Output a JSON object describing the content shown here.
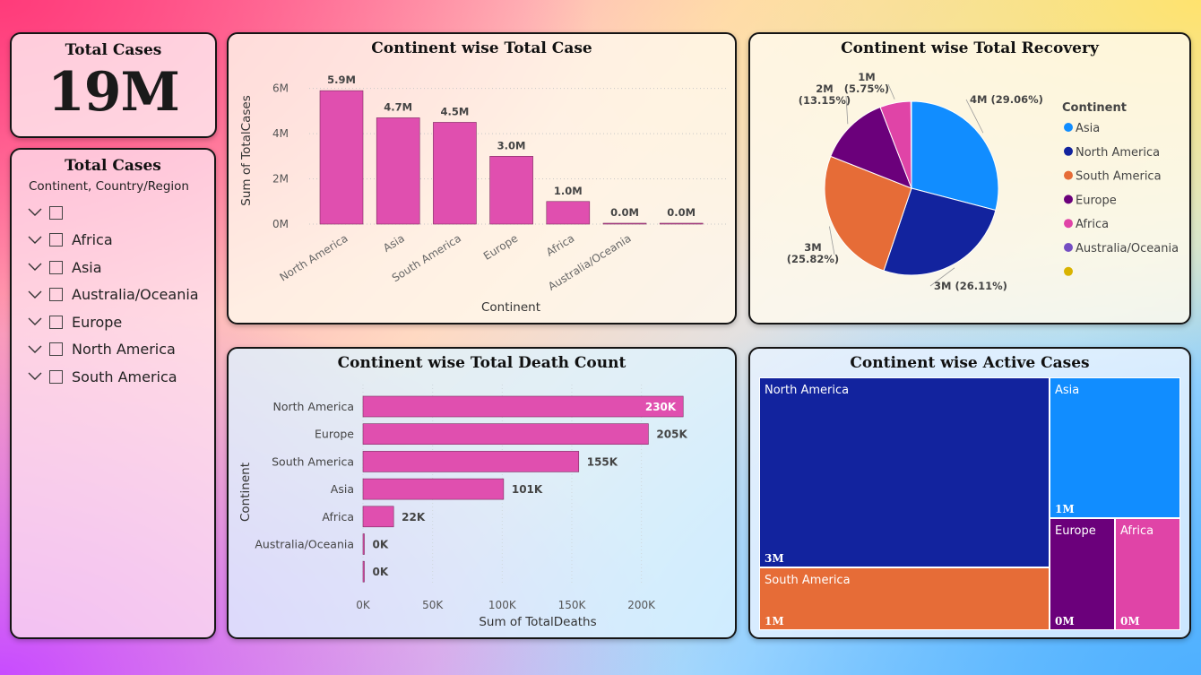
{
  "kpi": {
    "title": "Total Cases",
    "value": "19M"
  },
  "slicer": {
    "title": "Total Cases",
    "header": "Continent, Country/Region",
    "items": [
      "",
      "Africa",
      "Asia",
      "Australia/Oceania",
      "Europe",
      "North America",
      "South America"
    ]
  },
  "colors": {
    "pink": "#E04FAF",
    "asia": "#118DFF",
    "north_america": "#12239E",
    "south_america": "#E66C37",
    "europe": "#6B007B",
    "africa": "#E044A7",
    "australia_oceania": "#744EC2",
    "blank": "#D9B300"
  },
  "chart_data": [
    {
      "type": "bar",
      "title": "Continent wise Total Case",
      "xlabel": "Continent",
      "ylabel": "Sum of TotalCases",
      "categories": [
        "North America",
        "Asia",
        "South America",
        "Europe",
        "Africa",
        "Australia/Oceania",
        ""
      ],
      "values": [
        5.9,
        4.7,
        4.5,
        3.0,
        1.0,
        0.03,
        0.0
      ],
      "data_labels": [
        "5.9M",
        "4.7M",
        "4.5M",
        "3.0M",
        "1.0M",
        "0.0M",
        "0.0M"
      ],
      "yticks": [
        "0M",
        "2M",
        "4M",
        "6M"
      ],
      "ylim": [
        0,
        6.5
      ],
      "grid": true
    },
    {
      "type": "pie",
      "title": "Continent wise Total Recovery",
      "legend_title": "Continent",
      "legend_position": "right",
      "categories": [
        "Asia",
        "North America",
        "South America",
        "Europe",
        "Africa",
        "Australia/Oceania",
        ""
      ],
      "values": [
        29.06,
        26.11,
        25.82,
        13.15,
        5.75,
        0.08,
        0.03
      ],
      "data_labels": [
        "4M (29.06%)",
        "3M (26.11%)",
        "3M (25.82%)",
        "2M (13.15%)",
        "1M (5.75%)",
        "",
        ""
      ]
    },
    {
      "type": "bar",
      "orientation": "horizontal",
      "title": "Continent wise Total Death Count",
      "xlabel": "Sum of TotalDeaths",
      "ylabel": "Continent",
      "categories": [
        "North America",
        "Europe",
        "South America",
        "Asia",
        "Africa",
        "Australia/Oceania",
        ""
      ],
      "values": [
        230,
        205,
        155,
        101,
        22,
        0.5,
        0.1
      ],
      "data_labels": [
        "230K",
        "205K",
        "155K",
        "101K",
        "22K",
        "0K",
        "0K"
      ],
      "xticks": [
        "0K",
        "50K",
        "100K",
        "150K",
        "200K"
      ],
      "xlim": [
        0,
        235
      ],
      "grid": true
    },
    {
      "type": "treemap",
      "title": "Continent wise Active Cases",
      "categories": [
        "North America",
        "South America",
        "Asia",
        "Europe",
        "Africa"
      ],
      "values": [
        3,
        1,
        1,
        0.4,
        0.4
      ],
      "data_labels": [
        "3M",
        "1M",
        "1M",
        "0M",
        "0M"
      ]
    }
  ]
}
